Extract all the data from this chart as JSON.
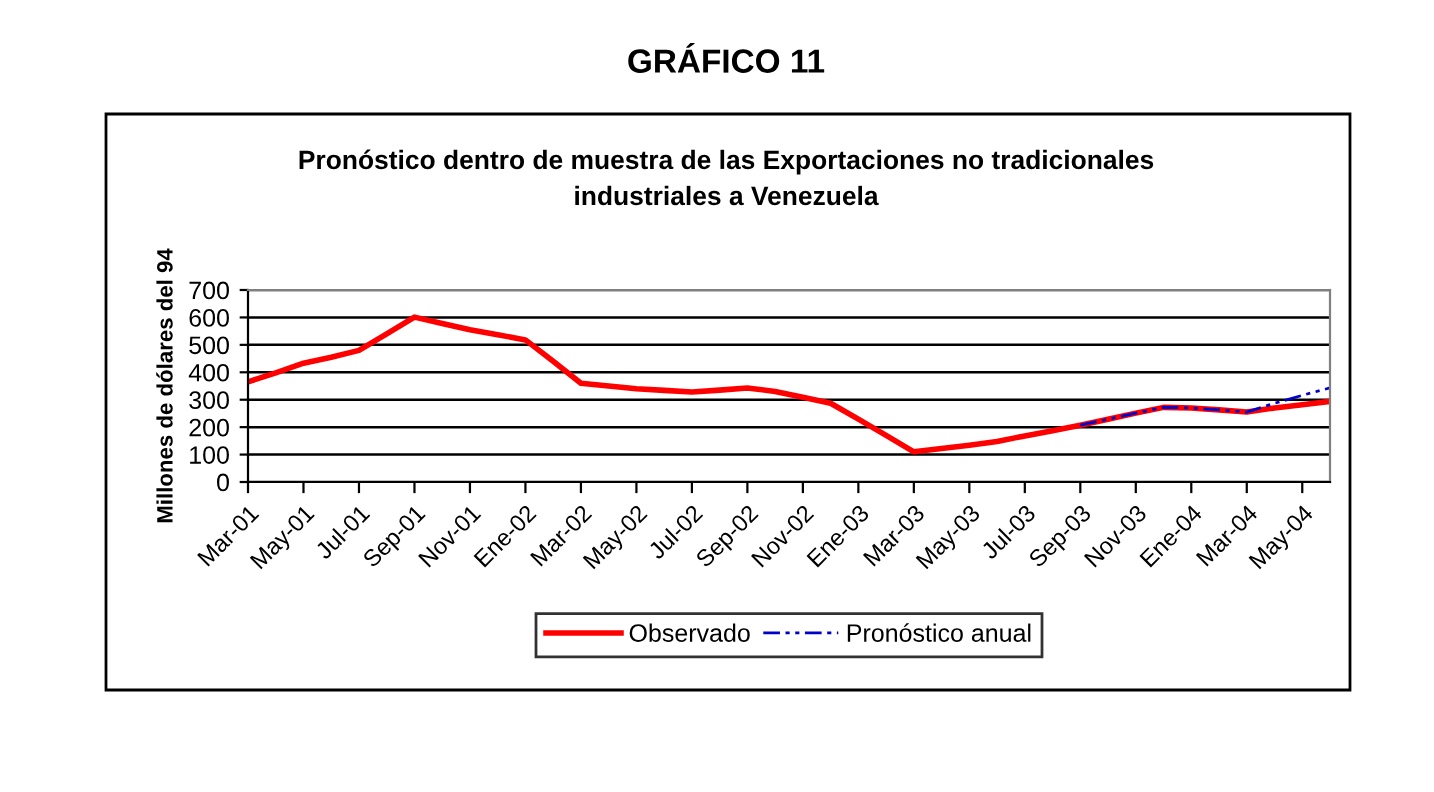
{
  "chart_data": {
    "type": "line",
    "title": "GRÁFICO 11",
    "subtitle": "Pronóstico dentro de muestra de las Exportaciones no tradicionales\nindustriales a Venezuela",
    "ylabel": "Millones de dólares del 94",
    "categories": [
      "Mar-01",
      null,
      "May-01",
      null,
      "Jul-01",
      null,
      "Sep-01",
      null,
      "Nov-01",
      null,
      "Ene-02",
      null,
      "Mar-02",
      null,
      "May-02",
      null,
      "Jul-02",
      null,
      "Sep-02",
      null,
      "Nov-02",
      null,
      "Ene-03",
      null,
      "Mar-03",
      null,
      "May-03",
      null,
      "Jul-03",
      null,
      "Sep-03",
      null,
      "Nov-03",
      null,
      "Ene-04",
      null,
      "Mar-04",
      null,
      "May-04",
      null
    ],
    "series": [
      {
        "name": "Observado",
        "color": "#ff0000",
        "line_style": "solid",
        "values": [
          365,
          398,
          433,
          455,
          480,
          540,
          601,
          578,
          555,
          537,
          518,
          440,
          360,
          350,
          340,
          334,
          328,
          335,
          343,
          330,
          309,
          287,
          229,
          170,
          110,
          122,
          134,
          148,
          168,
          187,
          207,
          229,
          251,
          272,
          270,
          263,
          255,
          270,
          282,
          294
        ]
      },
      {
        "name": "Pronóstico anual",
        "color": "#0000cc",
        "line_style": "dashed",
        "values": [
          null,
          null,
          null,
          null,
          null,
          null,
          null,
          null,
          null,
          null,
          null,
          null,
          null,
          null,
          null,
          null,
          null,
          null,
          null,
          null,
          null,
          null,
          null,
          null,
          null,
          null,
          null,
          null,
          null,
          null,
          207,
          229,
          251,
          272,
          270,
          263,
          255,
          287,
          316,
          343
        ]
      }
    ],
    "ylim": [
      0,
      700
    ],
    "yticks": [
      0,
      100,
      200,
      300,
      400,
      500,
      600,
      700
    ],
    "grid": "y",
    "legend": "bottom",
    "marker": "none"
  }
}
